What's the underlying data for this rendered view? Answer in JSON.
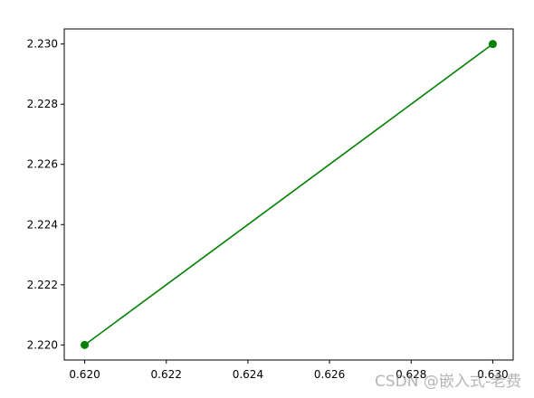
{
  "chart_data": {
    "type": "line",
    "title": "",
    "xlabel": "",
    "ylabel": "",
    "x": [
      0.62,
      0.63
    ],
    "series": [
      {
        "values": [
          2.22,
          2.23
        ],
        "color": "#008000",
        "marker": "circle"
      }
    ],
    "xlim": [
      0.6195,
      0.6305
    ],
    "ylim": [
      2.2195,
      2.2305
    ],
    "x_ticks": [
      "0.620",
      "0.622",
      "0.624",
      "0.626",
      "0.628",
      "0.630"
    ],
    "y_ticks": [
      "2.220",
      "2.222",
      "2.224",
      "2.226",
      "2.228",
      "2.230"
    ],
    "grid": false,
    "legend": "none"
  },
  "watermark": "CSDN @嵌入式-老费"
}
